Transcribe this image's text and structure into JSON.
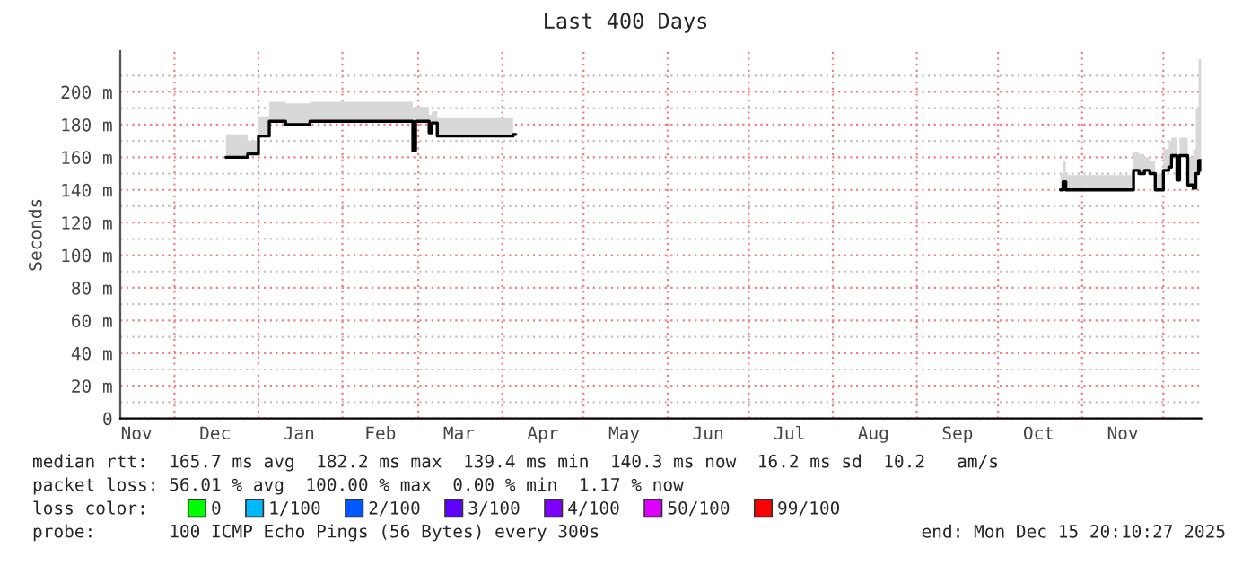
{
  "chart_data": {
    "type": "step",
    "title": "Last 400 Days",
    "ylabel": "Seconds",
    "xlim": [
      "2024-11-11",
      "2025-12-15"
    ],
    "xticks": [
      {
        "value": "2024-11-17",
        "label": "Nov"
      },
      {
        "value": "2024-12-01",
        "label": null
      },
      {
        "value": "2024-12-16",
        "label": "Dec"
      },
      {
        "value": "2025-01-01",
        "label": null
      },
      {
        "value": "2025-01-16",
        "label": "Jan"
      },
      {
        "value": "2025-02-01",
        "label": null
      },
      {
        "value": "2025-02-15",
        "label": "Feb"
      },
      {
        "value": "2025-03-01",
        "label": null
      },
      {
        "value": "2025-03-16",
        "label": "Mar"
      },
      {
        "value": "2025-04-01",
        "label": null
      },
      {
        "value": "2025-04-16",
        "label": "Apr"
      },
      {
        "value": "2025-05-01",
        "label": null
      },
      {
        "value": "2025-05-16",
        "label": "May"
      },
      {
        "value": "2025-06-01",
        "label": null
      },
      {
        "value": "2025-06-16",
        "label": "Jun"
      },
      {
        "value": "2025-07-01",
        "label": null
      },
      {
        "value": "2025-07-16",
        "label": "Jul"
      },
      {
        "value": "2025-08-01",
        "label": null
      },
      {
        "value": "2025-08-16",
        "label": "Aug"
      },
      {
        "value": "2025-09-01",
        "label": null
      },
      {
        "value": "2025-09-16",
        "label": "Sep"
      },
      {
        "value": "2025-10-01",
        "label": null
      },
      {
        "value": "2025-10-16",
        "label": "Oct"
      },
      {
        "value": "2025-11-01",
        "label": null
      },
      {
        "value": "2025-11-16",
        "label": "Nov"
      },
      {
        "value": "2025-12-01",
        "label": null
      }
    ],
    "ylim": [
      0,
      225
    ],
    "yticks": [
      0,
      {
        "value": 10,
        "label": null
      },
      {
        "value": 20,
        "label": "20 m"
      },
      {
        "value": 30,
        "label": null
      },
      {
        "value": 40,
        "label": "40 m"
      },
      {
        "value": 50,
        "label": null
      },
      {
        "value": 60,
        "label": "60 m"
      },
      {
        "value": 70,
        "label": null
      },
      {
        "value": 80,
        "label": "80 m"
      },
      {
        "value": 90,
        "label": null
      },
      {
        "value": 100,
        "label": "100 m"
      },
      {
        "value": 110,
        "label": null
      },
      {
        "value": 120,
        "label": "120 m"
      },
      {
        "value": 130,
        "label": null
      },
      {
        "value": 140,
        "label": "140 m"
      },
      {
        "value": 150,
        "label": null
      },
      {
        "value": 160,
        "label": "160 m"
      },
      {
        "value": 170,
        "label": null
      },
      {
        "value": 180,
        "label": "180 m"
      },
      {
        "value": 190,
        "label": null
      },
      {
        "value": 200,
        "label": "200 m"
      },
      {
        "value": 210,
        "label": null
      }
    ],
    "grid": true,
    "series": [
      {
        "color": "#000000",
        "x": [
          "2024-12-20",
          "2024-12-28",
          "2025-01-01",
          "2025-01-05",
          "2025-01-11",
          "2025-01-20",
          "2025-02-27",
          "2025-02-28",
          "2025-03-05",
          "2025-03-06",
          "2025-03-08",
          "2025-04-05",
          "2025-04-06",
          "2025-10-24",
          "2025-10-25",
          "2025-10-26",
          "2025-11-20",
          "2025-11-22",
          "2025-11-24",
          "2025-11-26",
          "2025-11-28",
          "2025-12-01",
          "2025-12-03",
          "2025-12-04",
          "2025-12-06",
          "2025-12-07",
          "2025-12-10",
          "2025-12-12",
          "2025-12-13",
          "2025-12-14",
          "2025-12-15"
        ],
        "values": [
          160,
          162,
          173,
          182,
          180,
          182,
          164,
          182,
          175,
          181,
          173,
          174,
          null,
          140,
          145,
          140,
          152,
          150,
          152,
          150,
          140,
          152,
          154,
          161,
          146,
          161,
          143,
          141,
          150,
          158,
          152
        ],
        "lower": [
          160,
          162,
          173,
          182,
          180,
          182,
          164,
          182,
          175,
          181,
          173,
          174,
          null,
          140,
          145,
          140,
          152,
          150,
          152,
          150,
          140,
          152,
          154,
          161,
          146,
          161,
          143,
          141,
          150,
          158,
          152
        ],
        "upper": [
          174,
          170,
          185,
          194,
          193,
          194,
          190,
          191,
          186,
          188,
          184,
          185,
          null,
          150,
          158,
          149,
          163,
          162,
          160,
          158,
          150,
          165,
          170,
          172,
          160,
          172,
          160,
          165,
          190,
          220,
          165
        ]
      },
      {
        "type": "scatter",
        "name": "0",
        "color": "#00ff00"
      },
      {
        "type": "scatter",
        "name": "1/100",
        "color": "#00b8ff"
      },
      {
        "type": "scatter",
        "name": "2/100",
        "color": "#0059ff"
      },
      {
        "type": "scatter",
        "name": "3/100",
        "color": "#5e00ff"
      },
      {
        "type": "scatter",
        "name": "4/100",
        "color": "#7e00ff"
      },
      {
        "type": "scatter",
        "name": "50/100",
        "color": "#dd00ff"
      },
      {
        "type": "scatter",
        "name": "99/100",
        "color": "#ff0000"
      }
    ],
    "legend": "bottom",
    "legend_title": "loss color:",
    "annotations": [
      "median rtt:  165.7 ms avg  182.2 ms max  139.4 ms min  140.3 ms now  16.2 ms sd  10.2   am/s",
      "packet loss: 56.01 % avg  100.00 % max  0.00 % min  1.17 % now",
      "probe:       100 ICMP Echo Pings (56 Bytes) every 300s",
      "end: Mon Dec 15 20:10:27 2025"
    ]
  }
}
